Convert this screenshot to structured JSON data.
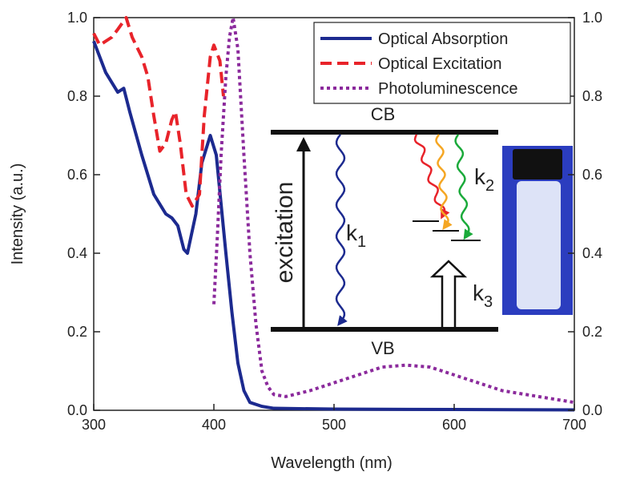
{
  "chart_data": {
    "type": "line",
    "xlabel": "Wavelength (nm)",
    "ylabel": "Intensity (a.u.)",
    "xlim": [
      300,
      700
    ],
    "xticks": [
      300,
      400,
      500,
      600,
      700
    ],
    "ylim": [
      0,
      1
    ],
    "yticks": [
      {
        "value": 0,
        "label": "0.0"
      },
      {
        "value": 0.2,
        "label": "0.2"
      },
      {
        "value": 0.4,
        "label": "0.4"
      },
      {
        "value": 0.6,
        "label": "0.6"
      },
      {
        "value": 0.8,
        "label": "0.8"
      },
      {
        "value": 1,
        "label": "1.0"
      }
    ],
    "y2lim": [
      0,
      1
    ],
    "y2ticks": [
      {
        "value": 0,
        "label": "0.0"
      },
      {
        "value": 0.2,
        "label": "0.2"
      },
      {
        "value": 0.4,
        "label": "0.4"
      },
      {
        "value": 0.6,
        "label": "0.6"
      },
      {
        "value": 0.8,
        "label": "0.8"
      },
      {
        "value": 1,
        "label": "1.0"
      }
    ],
    "legend": "upper right",
    "series": [
      {
        "name": "Optical Absorption",
        "color": "#1c2a8f",
        "dash": "solid",
        "x": [
          300,
          310,
          320,
          325,
          330,
          340,
          350,
          360,
          365,
          370,
          375,
          378,
          385,
          390,
          397,
          402,
          410,
          415,
          420,
          425,
          430,
          440,
          450,
          500,
          600,
          700
        ],
        "values": [
          0.94,
          0.86,
          0.81,
          0.82,
          0.76,
          0.65,
          0.55,
          0.5,
          0.49,
          0.47,
          0.41,
          0.4,
          0.5,
          0.63,
          0.7,
          0.65,
          0.4,
          0.25,
          0.12,
          0.05,
          0.02,
          0.01,
          0.005,
          0.003,
          0.002,
          0.001
        ]
      },
      {
        "name": "Optical Excitation",
        "color": "#e8232a",
        "dash": "dashed",
        "x": [
          300,
          305,
          315,
          320,
          327,
          332,
          340,
          345,
          350,
          355,
          360,
          365,
          368,
          372,
          377,
          382,
          388,
          392,
          397,
          400,
          405,
          408
        ],
        "values": [
          0.96,
          0.93,
          0.95,
          0.97,
          1.0,
          0.95,
          0.9,
          0.85,
          0.75,
          0.66,
          0.68,
          0.74,
          0.76,
          0.68,
          0.55,
          0.52,
          0.55,
          0.75,
          0.9,
          0.93,
          0.89,
          0.8
        ]
      },
      {
        "name": "Photoluminescence",
        "color": "#8b2a9c",
        "dash": "dotted",
        "x": [
          400,
          403,
          406,
          410,
          413,
          416,
          420,
          425,
          430,
          435,
          440,
          445,
          450,
          460,
          480,
          500,
          520,
          540,
          560,
          580,
          600,
          620,
          640,
          660,
          680,
          700
        ],
        "values": [
          0.27,
          0.45,
          0.65,
          0.85,
          0.95,
          1.0,
          0.92,
          0.65,
          0.4,
          0.22,
          0.1,
          0.06,
          0.04,
          0.035,
          0.05,
          0.07,
          0.09,
          0.11,
          0.115,
          0.11,
          0.09,
          0.07,
          0.05,
          0.04,
          0.03,
          0.02
        ]
      }
    ],
    "inset": {
      "cb": "CB",
      "vb": "VB",
      "excitation": "excitation",
      "k1": {
        "base": "k",
        "sub": "1"
      },
      "k2": {
        "base": "k",
        "sub": "2"
      },
      "k3": {
        "base": "k",
        "sub": "3"
      }
    }
  }
}
